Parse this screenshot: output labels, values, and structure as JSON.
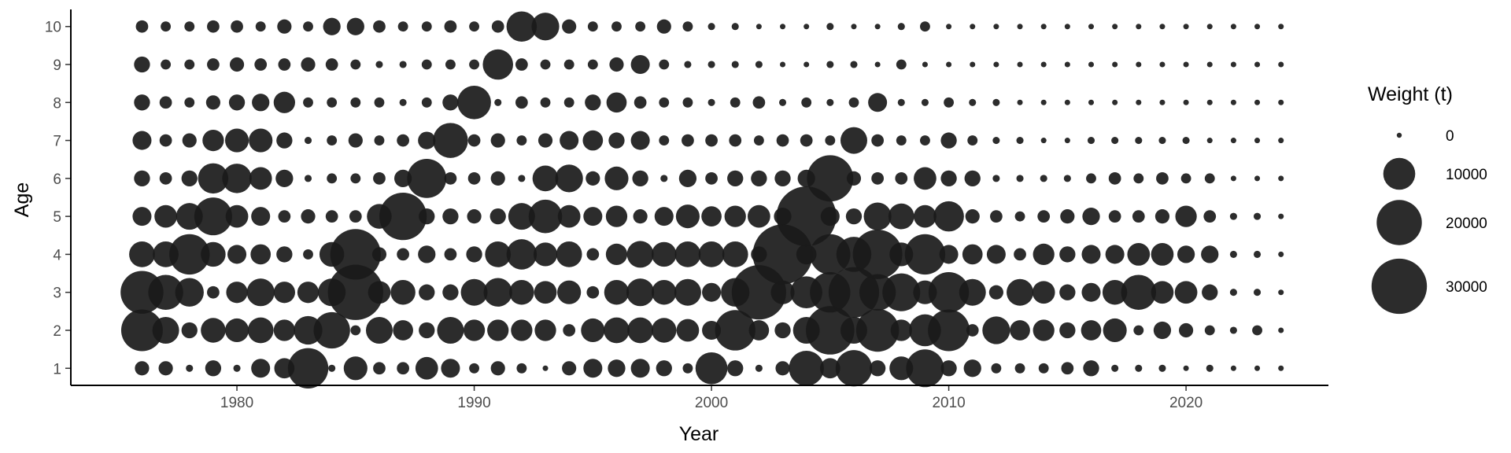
{
  "chart_data": {
    "type": "scatter",
    "title": "",
    "xlabel": "Year",
    "ylabel": "Age",
    "xlim": [
      1973,
      2026
    ],
    "ylim": [
      0.55,
      10.45
    ],
    "x_ticks": [
      1980,
      1990,
      2000,
      2010,
      2020
    ],
    "y_ticks": [
      1,
      2,
      3,
      4,
      5,
      6,
      7,
      8,
      9,
      10
    ],
    "grid": false,
    "legend_position": "right",
    "size_variable": "Weight (t)",
    "marker_color": "#1a1a1a",
    "legend": {
      "title": "Weight (t)",
      "entries": [
        {
          "label": "0",
          "value": 0
        },
        {
          "label": "10000",
          "value": 10000
        },
        {
          "label": "20000",
          "value": 20000
        },
        {
          "label": "30000",
          "value": 30000
        }
      ]
    },
    "years": [
      1976,
      1977,
      1978,
      1979,
      1980,
      1981,
      1982,
      1983,
      1984,
      1985,
      1986,
      1987,
      1988,
      1989,
      1990,
      1991,
      1992,
      1993,
      1994,
      1995,
      1996,
      1997,
      1998,
      1999,
      2000,
      2001,
      2002,
      2003,
      2004,
      2005,
      2006,
      2007,
      2008,
      2009,
      2010,
      2011,
      2012,
      2013,
      2014,
      2015,
      2016,
      2017,
      2018,
      2019,
      2020,
      2021,
      2022,
      2023,
      2024
    ],
    "ages": [
      1,
      2,
      3,
      4,
      5,
      6,
      7,
      8,
      9,
      10
    ],
    "weights_by_age": {
      "1": [
        2000,
        2000,
        500,
        2500,
        500,
        3500,
        4000,
        16000,
        500,
        5500,
        1500,
        1500,
        5000,
        3500,
        1000,
        2000,
        1000,
        300,
        2000,
        3500,
        3000,
        3500,
        2500,
        1000,
        10000,
        2500,
        500,
        2000,
        12000,
        4000,
        13000,
        2500,
        5500,
        14000,
        2500,
        3000,
        1000,
        1000,
        1000,
        1500,
        2500,
        500,
        500,
        500,
        300,
        500,
        300,
        300,
        300
      ],
      "2": [
        17000,
        7000,
        2500,
        6000,
        5500,
        6500,
        4500,
        8000,
        13000,
        1000,
        7000,
        4000,
        2500,
        7000,
        4500,
        4500,
        4500,
        4500,
        1500,
        5500,
        6500,
        6500,
        6000,
        5000,
        3500,
        16000,
        4000,
        2500,
        7000,
        23000,
        7000,
        18000,
        4500,
        10000,
        17000,
        1500,
        7500,
        4000,
        4500,
        2500,
        4000,
        5500,
        1000,
        3000,
        2000,
        1000,
        500,
        1000,
        300
      ],
      "3": [
        18000,
        12000,
        8000,
        1500,
        4500,
        7500,
        4500,
        4500,
        7500,
        30000,
        5000,
        6000,
        2500,
        2500,
        7000,
        8000,
        6000,
        5000,
        5500,
        1500,
        6000,
        7500,
        6000,
        7000,
        3500,
        8000,
        29000,
        5500,
        10000,
        16000,
        25000,
        13000,
        14000,
        5500,
        16000,
        7000,
        2000,
        7000,
        5000,
        2500,
        3500,
        6000,
        12000,
        5000,
        5000,
        2500,
        500,
        500,
        300
      ],
      "4": [
        6500,
        6500,
        16000,
        6000,
        3500,
        4000,
        2500,
        1000,
        6000,
        25000,
        2000,
        1500,
        3000,
        1500,
        2500,
        6500,
        9000,
        5500,
        6500,
        1500,
        4500,
        7000,
        6000,
        6500,
        6500,
        6500,
        2500,
        35000,
        4000,
        16000,
        12000,
        24000,
        5500,
        16000,
        3500,
        4000,
        3500,
        1500,
        4500,
        2500,
        3500,
        3500,
        5000,
        5000,
        3000,
        3000,
        500,
        500,
        300
      ],
      "5": [
        3500,
        5000,
        7000,
        14000,
        5000,
        3500,
        1500,
        2000,
        1500,
        1500,
        6000,
        22000,
        2500,
        2500,
        2000,
        2500,
        7000,
        11000,
        5000,
        3500,
        4500,
        2000,
        3500,
        5500,
        4000,
        4500,
        5000,
        3000,
        35000,
        3500,
        2500,
        7500,
        6500,
        5000,
        9000,
        2000,
        1500,
        1000,
        1500,
        2000,
        3000,
        1500,
        1500,
        2000,
        4500,
        1500,
        500,
        500,
        300
      ],
      "6": [
        2500,
        1500,
        2500,
        9000,
        8500,
        5000,
        3000,
        500,
        1000,
        1000,
        1500,
        3000,
        15000,
        1500,
        1500,
        2000,
        500,
        6500,
        7500,
        2000,
        5500,
        2500,
        500,
        3000,
        1500,
        2500,
        2500,
        2500,
        3000,
        21000,
        2000,
        1500,
        1500,
        5000,
        2500,
        2500,
        500,
        500,
        500,
        500,
        1000,
        1500,
        1000,
        1500,
        1000,
        1000,
        300,
        300,
        300
      ],
      "7": [
        3500,
        1500,
        2000,
        4500,
        5500,
        5500,
        2500,
        500,
        1000,
        2000,
        1000,
        1500,
        3000,
        12000,
        1500,
        2000,
        1000,
        2000,
        3500,
        4000,
        2500,
        3500,
        1000,
        1500,
        1500,
        1500,
        1000,
        1500,
        1500,
        1000,
        7000,
        1500,
        1000,
        1000,
        2500,
        1000,
        500,
        500,
        300,
        300,
        500,
        500,
        500,
        500,
        500,
        300,
        300,
        300,
        300
      ],
      "8": [
        2500,
        1500,
        1000,
        2000,
        2500,
        3000,
        4500,
        1000,
        1000,
        1000,
        1000,
        500,
        1000,
        2500,
        11000,
        500,
        1500,
        1000,
        1000,
        2500,
        4000,
        1500,
        1000,
        1000,
        500,
        1000,
        1500,
        500,
        1000,
        500,
        1000,
        3500,
        500,
        500,
        1000,
        500,
        500,
        300,
        300,
        300,
        300,
        300,
        300,
        300,
        300,
        300,
        300,
        300,
        300
      ],
      "9": [
        2500,
        1000,
        1000,
        1500,
        2000,
        1500,
        1500,
        2000,
        1500,
        1000,
        500,
        500,
        1000,
        1000,
        1000,
        9000,
        1500,
        1000,
        1000,
        1000,
        2000,
        3500,
        1000,
        500,
        500,
        500,
        500,
        300,
        300,
        500,
        500,
        300,
        1000,
        300,
        300,
        300,
        300,
        300,
        300,
        300,
        300,
        300,
        300,
        300,
        300,
        300,
        300,
        300,
        300
      ],
      "10": [
        1500,
        1000,
        1000,
        1500,
        1500,
        1000,
        2000,
        1000,
        3000,
        3000,
        1500,
        1000,
        1000,
        1500,
        1000,
        1500,
        9000,
        7500,
        2000,
        1000,
        1000,
        1000,
        2000,
        1000,
        500,
        500,
        300,
        300,
        300,
        500,
        300,
        300,
        500,
        1000,
        300,
        300,
        300,
        300,
        300,
        300,
        300,
        300,
        300,
        300,
        300,
        300,
        300,
        300,
        300
      ]
    }
  }
}
